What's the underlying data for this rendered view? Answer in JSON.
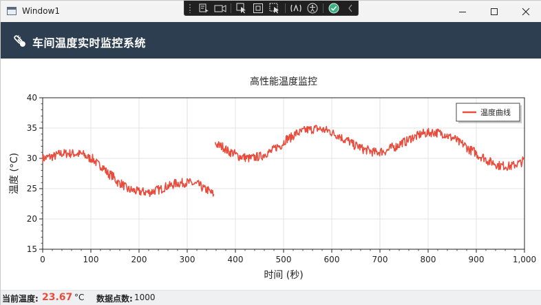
{
  "window": {
    "title": "Window1"
  },
  "devtools": {
    "icons": [
      "select-element-icon",
      "video-icon",
      "pointer-icon",
      "frame-icon",
      "track-focus-icon",
      "binding-icon",
      "accessibility-icon",
      "check-icon",
      "collapse-icon"
    ]
  },
  "header": {
    "title": "车间温度实时监控系统",
    "icon": "thermometer-icon"
  },
  "chart_data": {
    "type": "line",
    "title": "高性能温度监控",
    "xlabel": "时间 (秒)",
    "ylabel": "温度 (°C)",
    "xlim": [
      0,
      1000
    ],
    "ylim": [
      15,
      40
    ],
    "xticks": [
      "0",
      "100",
      "200",
      "300",
      "400",
      "500",
      "600",
      "700",
      "800",
      "900",
      "1,000"
    ],
    "yticks": [
      "15",
      "20",
      "25",
      "30",
      "35",
      "40"
    ],
    "grid": true,
    "legend": "top-right",
    "series": [
      {
        "name": "温度曲线",
        "color": "#e74c3c",
        "segments": [
          {
            "x": [
              0,
              20,
              40,
              60,
              80,
              100,
              120,
              140,
              160,
              180,
              200,
              220,
              240,
              260,
              280,
              300,
              320,
              340,
              355
            ],
            "y": [
              30.0,
              30.3,
              30.8,
              30.8,
              30.7,
              30.0,
              28.8,
              27.3,
              25.9,
              24.8,
              24.5,
              24.4,
              24.8,
              25.4,
              25.9,
              26.0,
              25.7,
              24.8,
              24.1
            ]
          },
          {
            "x": [
              358,
              370,
              390,
              410,
              430,
              450,
              470,
              490,
              510,
              530,
              550,
              570,
              590,
              610,
              630,
              650,
              670,
              690,
              710,
              730,
              750,
              770,
              790,
              810,
              830,
              850,
              870,
              890,
              910,
              930,
              950,
              970,
              990,
              1000
            ],
            "y": [
              32.4,
              32.0,
              31.0,
              30.3,
              30.0,
              30.3,
              31.0,
              32.0,
              33.3,
              34.2,
              34.7,
              34.9,
              34.6,
              33.9,
              33.0,
              32.1,
              31.4,
              31.0,
              31.2,
              31.9,
              32.7,
              33.5,
              34.1,
              34.3,
              34.1,
              33.4,
              32.4,
              31.3,
              30.3,
              29.4,
              28.8,
              28.7,
              29.2,
              29.7
            ]
          }
        ]
      }
    ]
  },
  "status": {
    "current_temp_label": "当前温度:",
    "current_temp_value": "23.67",
    "temp_unit": "°C",
    "points_label": "数据点数:",
    "points_value": "1000"
  }
}
